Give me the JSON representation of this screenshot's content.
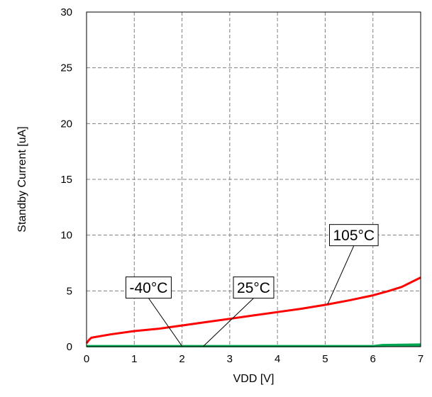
{
  "chart_data": {
    "type": "line",
    "xlabel": "VDD [V]",
    "ylabel": "Standby Current [uA]",
    "xlim": [
      0,
      7
    ],
    "ylim": [
      0,
      30
    ],
    "xticks": [
      "0",
      "1",
      "2",
      "3",
      "4",
      "5",
      "6",
      "7"
    ],
    "yticks": [
      "0",
      "5",
      "10",
      "15",
      "20",
      "25",
      "30"
    ],
    "grid": true,
    "series": [
      {
        "name": "105°C",
        "color": "#ff0000",
        "x": [
          0,
          0.05,
          0.1,
          0.5,
          1,
          1.5,
          2,
          2.5,
          3,
          3.5,
          4,
          4.5,
          5,
          5.5,
          6,
          6.3,
          6.6,
          7
        ],
        "y": [
          0.3,
          0.6,
          0.8,
          1.1,
          1.4,
          1.6,
          1.9,
          2.2,
          2.5,
          2.8,
          3.1,
          3.4,
          3.75,
          4.15,
          4.6,
          4.95,
          5.35,
          6.2
        ]
      },
      {
        "name": "25°C",
        "color": "#00a651",
        "x": [
          0,
          1,
          2,
          3,
          4,
          5,
          6,
          6.2,
          7
        ],
        "y": [
          0.05,
          0.05,
          0.05,
          0.05,
          0.05,
          0.05,
          0.05,
          0.15,
          0.2
        ]
      },
      {
        "name": "-40°C",
        "color": "#00a651",
        "x": [
          0,
          1,
          2,
          3,
          4,
          5,
          6,
          7
        ],
        "y": [
          0.05,
          0.05,
          0.05,
          0.05,
          0.05,
          0.05,
          0.05,
          0.1
        ]
      }
    ],
    "annotations": [
      {
        "text": "105°C",
        "box_anchor": [
          5.6,
          10
        ],
        "target": [
          5.05,
          3.8
        ]
      },
      {
        "text": "25°C",
        "box_anchor": [
          3.5,
          5.3
        ],
        "target": [
          2.45,
          0.05
        ]
      },
      {
        "text": "-40°C",
        "box_anchor": [
          1.3,
          5.3
        ],
        "target": [
          2.0,
          0.05
        ]
      }
    ]
  }
}
